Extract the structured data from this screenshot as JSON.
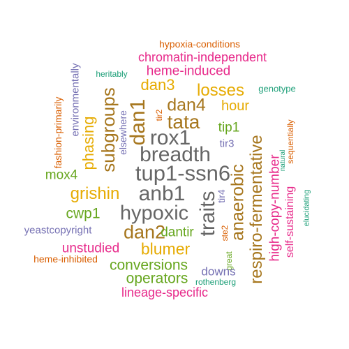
{
  "palette": {
    "orange": "#D95F02",
    "purple": "#7570B3",
    "magenta": "#E7298A",
    "green": "#66A61E",
    "gold": "#E6AB02",
    "brown": "#A6761D",
    "teal": "#1B9E77",
    "gray": "#666666"
  },
  "words": [
    {
      "text": "hypoxia-conditions",
      "color": "orange",
      "vertical": false
    },
    {
      "text": "chromatin-independent",
      "color": "magenta",
      "vertical": false
    },
    {
      "text": "heritably",
      "color": "teal",
      "vertical": false
    },
    {
      "text": "heme-induced",
      "color": "magenta",
      "vertical": false
    },
    {
      "text": "environmentally",
      "color": "purple",
      "vertical": true
    },
    {
      "text": "dan3",
      "color": "gold",
      "vertical": false
    },
    {
      "text": "losses",
      "color": "gold",
      "vertical": false
    },
    {
      "text": "genotype",
      "color": "teal",
      "vertical": false
    },
    {
      "text": "fashion-primarily",
      "color": "orange",
      "vertical": true
    },
    {
      "text": "subgroups",
      "color": "brown",
      "vertical": true
    },
    {
      "text": "dan4",
      "color": "brown",
      "vertical": false
    },
    {
      "text": "hour",
      "color": "gold",
      "vertical": false
    },
    {
      "text": "tir2",
      "color": "orange",
      "vertical": true
    },
    {
      "text": "dan1",
      "color": "brown",
      "vertical": true
    },
    {
      "text": "tata",
      "color": "brown",
      "vertical": false
    },
    {
      "text": "phasing",
      "color": "gold",
      "vertical": true
    },
    {
      "text": "elsewhere",
      "color": "purple",
      "vertical": true
    },
    {
      "text": "rox1",
      "color": "gray",
      "vertical": false
    },
    {
      "text": "tip1",
      "color": "green",
      "vertical": false
    },
    {
      "text": "respiro-fermentative",
      "color": "brown",
      "vertical": true
    },
    {
      "text": "sequentially",
      "color": "orange",
      "vertical": true
    },
    {
      "text": "natural",
      "color": "teal",
      "vertical": true
    },
    {
      "text": "breadth",
      "color": "gray",
      "vertical": false
    },
    {
      "text": "tir3",
      "color": "purple",
      "vertical": false
    },
    {
      "text": "tup1-ssn6",
      "color": "gray",
      "vertical": false
    },
    {
      "text": "mox4",
      "color": "green",
      "vertical": false
    },
    {
      "text": "high-copy-number",
      "color": "magenta",
      "vertical": true
    },
    {
      "text": "grishin",
      "color": "gold",
      "vertical": false
    },
    {
      "text": "anb1",
      "color": "gray",
      "vertical": false
    },
    {
      "text": "traits",
      "color": "gray",
      "vertical": true
    },
    {
      "text": "tir4",
      "color": "purple",
      "vertical": true
    },
    {
      "text": "anaerobic",
      "color": "brown",
      "vertical": true
    },
    {
      "text": "self-sustaining",
      "color": "magenta",
      "vertical": true
    },
    {
      "text": "elucidating",
      "color": "teal",
      "vertical": true
    },
    {
      "text": "cwp1",
      "color": "green",
      "vertical": false
    },
    {
      "text": "hypoxic",
      "color": "gray",
      "vertical": false
    },
    {
      "text": "yeastcopyright",
      "color": "purple",
      "vertical": false
    },
    {
      "text": "dan2",
      "color": "brown",
      "vertical": false
    },
    {
      "text": "dantir",
      "color": "green",
      "vertical": false
    },
    {
      "text": "ste2",
      "color": "orange",
      "vertical": true
    },
    {
      "text": "unstudied",
      "color": "magenta",
      "vertical": false
    },
    {
      "text": "blumer",
      "color": "gold",
      "vertical": false
    },
    {
      "text": "great",
      "color": "green",
      "vertical": true
    },
    {
      "text": "heme-inhibited",
      "color": "orange",
      "vertical": false
    },
    {
      "text": "conversions",
      "color": "green",
      "vertical": false
    },
    {
      "text": "downs",
      "color": "purple",
      "vertical": false
    },
    {
      "text": "operators",
      "color": "green",
      "vertical": false
    },
    {
      "text": "rothenberg",
      "color": "teal",
      "vertical": false
    },
    {
      "text": "lineage-specific",
      "color": "magenta",
      "vertical": false
    }
  ]
}
